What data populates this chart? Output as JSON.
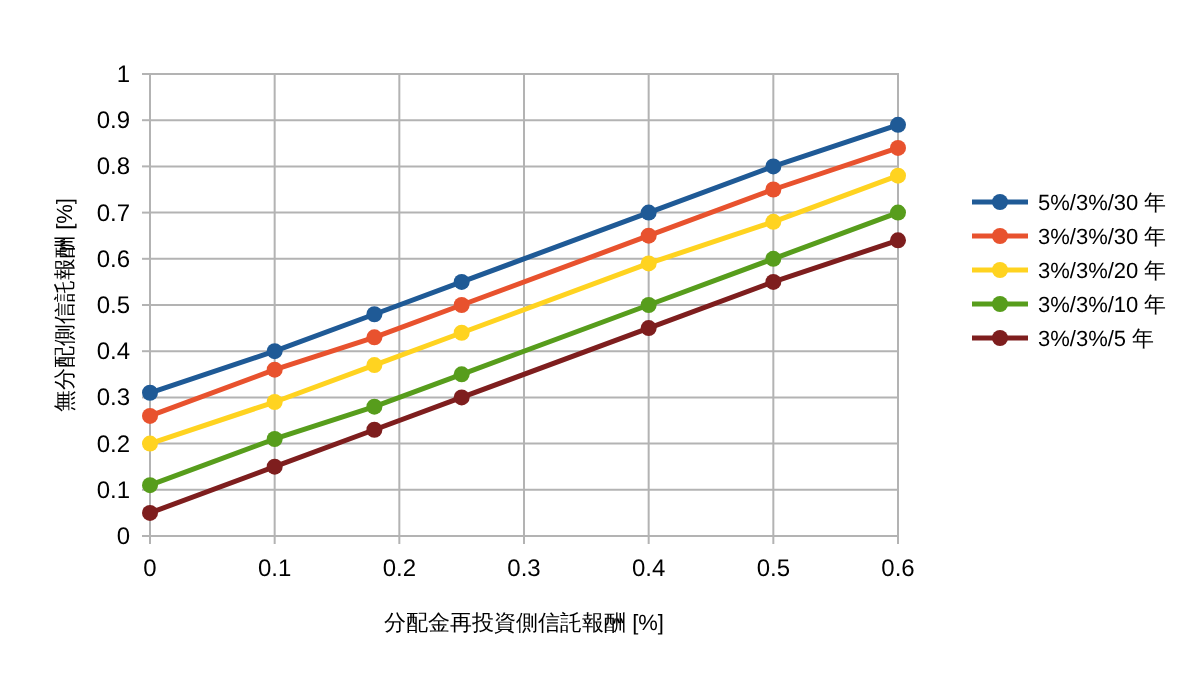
{
  "chart_data": {
    "type": "line",
    "xlabel": "分配金再投資側信託報酬 [%]",
    "ylabel": "無分配側信託報酬 [%]",
    "x": [
      0,
      0.1,
      0.18,
      0.25,
      0.4,
      0.5,
      0.6
    ],
    "series": [
      {
        "name": "5%/3%/30 年",
        "color": "#1f5a96",
        "values": [
          0.31,
          0.4,
          0.48,
          0.55,
          0.7,
          0.8,
          0.89
        ]
      },
      {
        "name": "3%/3%/30 年",
        "color": "#e8522e",
        "values": [
          0.26,
          0.36,
          0.43,
          0.5,
          0.65,
          0.75,
          0.84
        ]
      },
      {
        "name": "3%/3%/20 年",
        "color": "#ffd320",
        "values": [
          0.2,
          0.29,
          0.37,
          0.44,
          0.59,
          0.68,
          0.78
        ]
      },
      {
        "name": "3%/3%/10 年",
        "color": "#579d1c",
        "values": [
          0.11,
          0.21,
          0.28,
          0.35,
          0.5,
          0.6,
          0.7
        ]
      },
      {
        "name": "3%/3%/5 年",
        "color": "#7e1e1e",
        "values": [
          0.05,
          0.15,
          0.23,
          0.3,
          0.45,
          0.55,
          0.64
        ]
      }
    ],
    "xlim": [
      0,
      0.6
    ],
    "ylim": [
      0,
      1
    ],
    "xticks": [
      0,
      0.1,
      0.2,
      0.3,
      0.4,
      0.5,
      0.6
    ],
    "yticks": [
      0,
      0.1,
      0.2,
      0.3,
      0.4,
      0.5,
      0.6,
      0.7,
      0.8,
      0.9,
      1
    ],
    "grid": true,
    "legend": "right",
    "marker": "circle",
    "line_style": "solid"
  }
}
